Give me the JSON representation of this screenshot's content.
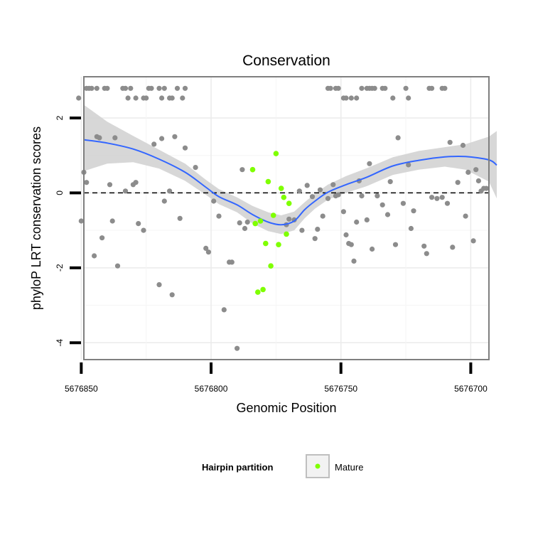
{
  "chart_data": {
    "type": "scatter",
    "title": "Conservation",
    "xlabel": "Genomic Position",
    "ylabel": "phyloP LRT conservation scores",
    "x_reversed": true,
    "xlim": [
      5676849,
      5676693
    ],
    "ylim": [
      -4.45,
      3.1
    ],
    "x_ticks": [
      5676850,
      5676800,
      5676750,
      5676700
    ],
    "x_tick_labels": [
      "5676850",
      "5676800",
      "5676750",
      "5676700"
    ],
    "y_ticks": [
      -4,
      -2,
      0,
      2
    ],
    "y_tick_labels": [
      "-4",
      "-2",
      "0",
      "2"
    ],
    "grid": true,
    "reference_line": {
      "y": 0,
      "style": "dashed"
    },
    "legend": {
      "title": "Hairpin partition",
      "position": "bottom",
      "entries": [
        "Mature"
      ]
    },
    "colors": {
      "other": "#8c8c8c",
      "mature": "#7fff00",
      "smooth": "#3366ff",
      "ribbon": "#d3d3d3",
      "panel_border": "#7f7f7f"
    },
    "series": [
      {
        "label": "",
        "color": "#8c8c8c",
        "points": [
          [
            5676851,
            2.53
          ],
          [
            5676848,
            2.79
          ],
          [
            5676847,
            2.79
          ],
          [
            5676846,
            2.79
          ],
          [
            5676844,
            2.79
          ],
          [
            5676841,
            2.79
          ],
          [
            5676840,
            2.79
          ],
          [
            5676834,
            2.79
          ],
          [
            5676833,
            2.79
          ],
          [
            5676832,
            2.53
          ],
          [
            5676831,
            2.79
          ],
          [
            5676829,
            2.53
          ],
          [
            5676826,
            2.53
          ],
          [
            5676825,
            2.53
          ],
          [
            5676824,
            2.79
          ],
          [
            5676823,
            2.79
          ],
          [
            5676820,
            2.79
          ],
          [
            5676819,
            2.53
          ],
          [
            5676818,
            2.79
          ],
          [
            5676816,
            2.53
          ],
          [
            5676815,
            2.53
          ],
          [
            5676813,
            2.79
          ],
          [
            5676811,
            2.53
          ],
          [
            5676810,
            2.79
          ],
          [
            5676755,
            2.79
          ],
          [
            5676754,
            2.79
          ],
          [
            5676752,
            2.79
          ],
          [
            5676751,
            2.79
          ],
          [
            5676749,
            2.53
          ],
          [
            5676748,
            2.53
          ],
          [
            5676746,
            2.53
          ],
          [
            5676744,
            2.53
          ],
          [
            5676742,
            2.79
          ],
          [
            5676740,
            2.79
          ],
          [
            5676739,
            2.79
          ],
          [
            5676738,
            2.79
          ],
          [
            5676737,
            2.79
          ],
          [
            5676734,
            2.79
          ],
          [
            5676733,
            2.79
          ],
          [
            5676730,
            2.53
          ],
          [
            5676725,
            2.79
          ],
          [
            5676724,
            2.53
          ],
          [
            5676716,
            2.79
          ],
          [
            5676715,
            2.79
          ],
          [
            5676711,
            2.79
          ],
          [
            5676710,
            2.79
          ],
          [
            5676850,
            -0.75
          ],
          [
            5676849,
            0.55
          ],
          [
            5676848,
            0.28
          ],
          [
            5676845,
            -1.68
          ],
          [
            5676844,
            1.5
          ],
          [
            5676843,
            1.47
          ],
          [
            5676842,
            -1.2
          ],
          [
            5676839,
            0.22
          ],
          [
            5676838,
            -0.75
          ],
          [
            5676837,
            1.47
          ],
          [
            5676836,
            -1.95
          ],
          [
            5676833,
            0.05
          ],
          [
            5676830,
            0.22
          ],
          [
            5676829,
            0.28
          ],
          [
            5676828,
            -0.82
          ],
          [
            5676826,
            -1.0
          ],
          [
            5676822,
            1.3
          ],
          [
            5676820,
            -2.45
          ],
          [
            5676819,
            1.45
          ],
          [
            5676818,
            -0.22
          ],
          [
            5676816,
            0.05
          ],
          [
            5676815,
            -2.72
          ],
          [
            5676814,
            1.5
          ],
          [
            5676812,
            -0.68
          ],
          [
            5676810,
            1.2
          ],
          [
            5676806,
            0.68
          ],
          [
            5676802,
            -1.48
          ],
          [
            5676801,
            -1.58
          ],
          [
            5676799,
            -0.22
          ],
          [
            5676797,
            -0.62
          ],
          [
            5676795,
            -3.12
          ],
          [
            5676793,
            -1.85
          ],
          [
            5676792,
            -1.85
          ],
          [
            5676790,
            -4.15
          ],
          [
            5676789,
            -0.8
          ],
          [
            5676788,
            0.62
          ],
          [
            5676787,
            -0.95
          ],
          [
            5676786,
            -0.78
          ],
          [
            5676771,
            -0.85
          ],
          [
            5676770,
            -0.7
          ],
          [
            5676768,
            -0.72
          ],
          [
            5676766,
            0.05
          ],
          [
            5676765,
            -1.0
          ],
          [
            5676763,
            0.2
          ],
          [
            5676761,
            -0.1
          ],
          [
            5676760,
            -1.22
          ],
          [
            5676759,
            -0.97
          ],
          [
            5676758,
            0.08
          ],
          [
            5676757,
            -0.62
          ],
          [
            5676755,
            -0.15
          ],
          [
            5676753,
            0.22
          ],
          [
            5676752,
            -0.08
          ],
          [
            5676751,
            -0.05
          ],
          [
            5676749,
            -0.5
          ],
          [
            5676748,
            -1.12
          ],
          [
            5676747,
            -1.35
          ],
          [
            5676746,
            -1.38
          ],
          [
            5676745,
            -1.82
          ],
          [
            5676744,
            -0.78
          ],
          [
            5676743,
            0.32
          ],
          [
            5676742,
            -0.08
          ],
          [
            5676740,
            -0.72
          ],
          [
            5676739,
            0.78
          ],
          [
            5676738,
            -1.5
          ],
          [
            5676736,
            -0.08
          ],
          [
            5676734,
            -0.32
          ],
          [
            5676732,
            -0.58
          ],
          [
            5676731,
            0.3
          ],
          [
            5676729,
            -1.38
          ],
          [
            5676728,
            1.47
          ],
          [
            5676726,
            -0.28
          ],
          [
            5676724,
            0.75
          ],
          [
            5676723,
            -0.95
          ],
          [
            5676722,
            -0.48
          ],
          [
            5676718,
            -1.42
          ],
          [
            5676717,
            -1.62
          ],
          [
            5676715,
            -0.12
          ],
          [
            5676713,
            -0.15
          ],
          [
            5676711,
            -0.12
          ],
          [
            5676709,
            -0.28
          ],
          [
            5676708,
            1.35
          ],
          [
            5676707,
            -1.45
          ],
          [
            5676705,
            0.28
          ],
          [
            5676703,
            1.27
          ],
          [
            5676702,
            -0.62
          ],
          [
            5676701,
            0.55
          ],
          [
            5676699,
            -1.28
          ],
          [
            5676698,
            0.62
          ],
          [
            5676697,
            0.32
          ],
          [
            5676696,
            0.05
          ],
          [
            5676695,
            0.12
          ],
          [
            5676694,
            0.12
          ]
        ]
      },
      {
        "label": "Mature",
        "color": "#7fff00",
        "points": [
          [
            5676784,
            0.62
          ],
          [
            5676783,
            -0.82
          ],
          [
            5676782,
            -2.65
          ],
          [
            5676781,
            -0.75
          ],
          [
            5676780,
            -2.58
          ],
          [
            5676779,
            -1.35
          ],
          [
            5676778,
            0.3
          ],
          [
            5676777,
            -1.95
          ],
          [
            5676776,
            -0.6
          ],
          [
            5676775,
            1.05
          ],
          [
            5676774,
            -1.38
          ],
          [
            5676773,
            0.12
          ],
          [
            5676772,
            -0.12
          ],
          [
            5676771,
            -1.1
          ],
          [
            5676770,
            -0.28
          ]
        ]
      }
    ],
    "smooth": [
      [
        5676849,
        1.42
      ],
      [
        5676840,
        1.33
      ],
      [
        5676830,
        1.17
      ],
      [
        5676820,
        0.9
      ],
      [
        5676810,
        0.55
      ],
      [
        5676802,
        0.15
      ],
      [
        5676797,
        -0.1
      ],
      [
        5676790,
        -0.32
      ],
      [
        5676784,
        -0.58
      ],
      [
        5676778,
        -0.78
      ],
      [
        5676773,
        -0.85
      ],
      [
        5676768,
        -0.75
      ],
      [
        5676764,
        -0.45
      ],
      [
        5676760,
        -0.22
      ],
      [
        5676755,
        0.02
      ],
      [
        5676748,
        0.22
      ],
      [
        5676740,
        0.42
      ],
      [
        5676730,
        0.72
      ],
      [
        5676720,
        0.87
      ],
      [
        5676710,
        0.96
      ],
      [
        5676702,
        0.97
      ],
      [
        5676693,
        0.88
      ],
      [
        5676690,
        0.74
      ]
    ],
    "ribbon_upper": [
      [
        5676849,
        2.35
      ],
      [
        5676840,
        1.9
      ],
      [
        5676830,
        1.52
      ],
      [
        5676820,
        1.15
      ],
      [
        5676810,
        0.78
      ],
      [
        5676802,
        0.35
      ],
      [
        5676797,
        0.1
      ],
      [
        5676790,
        -0.12
      ],
      [
        5676784,
        -0.35
      ],
      [
        5676778,
        -0.52
      ],
      [
        5676773,
        -0.6
      ],
      [
        5676768,
        -0.5
      ],
      [
        5676764,
        -0.25
      ],
      [
        5676760,
        -0.02
      ],
      [
        5676755,
        0.22
      ],
      [
        5676748,
        0.45
      ],
      [
        5676740,
        0.66
      ],
      [
        5676730,
        0.95
      ],
      [
        5676720,
        1.12
      ],
      [
        5676710,
        1.22
      ],
      [
        5676702,
        1.3
      ],
      [
        5676693,
        1.5
      ],
      [
        5676690,
        1.65
      ]
    ],
    "ribbon_lower": [
      [
        5676849,
        0.58
      ],
      [
        5676840,
        0.78
      ],
      [
        5676830,
        0.82
      ],
      [
        5676820,
        0.65
      ],
      [
        5676810,
        0.32
      ],
      [
        5676802,
        -0.05
      ],
      [
        5676797,
        -0.3
      ],
      [
        5676790,
        -0.52
      ],
      [
        5676784,
        -0.82
      ],
      [
        5676778,
        -1.02
      ],
      [
        5676773,
        -1.1
      ],
      [
        5676768,
        -1.0
      ],
      [
        5676764,
        -0.68
      ],
      [
        5676760,
        -0.42
      ],
      [
        5676755,
        -0.18
      ],
      [
        5676748,
        0.0
      ],
      [
        5676740,
        0.18
      ],
      [
        5676730,
        0.48
      ],
      [
        5676720,
        0.62
      ],
      [
        5676710,
        0.7
      ],
      [
        5676702,
        0.62
      ],
      [
        5676693,
        0.3
      ],
      [
        5676690,
        -0.15
      ]
    ]
  }
}
